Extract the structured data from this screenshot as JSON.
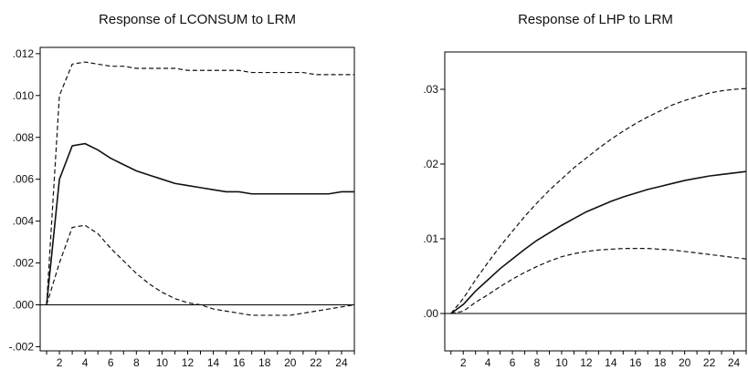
{
  "chart_data": [
    {
      "type": "line",
      "title": "Response of LCONSUM to LRM",
      "xlabel": "",
      "ylabel": "",
      "x": [
        1,
        2,
        3,
        4,
        5,
        6,
        7,
        8,
        9,
        10,
        11,
        12,
        13,
        14,
        15,
        16,
        17,
        18,
        19,
        20,
        21,
        22,
        23,
        24,
        25
      ],
      "xlim": [
        0.5,
        25
      ],
      "ylim": [
        -0.0022,
        0.0123
      ],
      "xticks": [
        2,
        4,
        6,
        8,
        10,
        12,
        14,
        16,
        18,
        20,
        22,
        24
      ],
      "xtick_labels": [
        "2",
        "4",
        "6",
        "8",
        "10",
        "12",
        "14",
        "16",
        "18",
        "20",
        "22",
        "24"
      ],
      "yticks": [
        -0.002,
        0.0,
        0.002,
        0.004,
        0.006,
        0.008,
        0.01,
        0.012
      ],
      "ytick_labels": [
        "-.002",
        ".000",
        ".002",
        ".004",
        ".006",
        ".008",
        ".010",
        ".012"
      ],
      "zero_line": true,
      "grid": false,
      "series": [
        {
          "style": "solid",
          "values": [
            0.0,
            0.006,
            0.0076,
            0.0077,
            0.0074,
            0.007,
            0.0067,
            0.0064,
            0.0062,
            0.006,
            0.0058,
            0.0057,
            0.0056,
            0.0055,
            0.0054,
            0.0054,
            0.0053,
            0.0053,
            0.0053,
            0.0053,
            0.0053,
            0.0053,
            0.0053,
            0.0054,
            0.0054
          ]
        },
        {
          "style": "dashed",
          "values": [
            0.0,
            0.01,
            0.0115,
            0.0116,
            0.0115,
            0.0114,
            0.0114,
            0.0113,
            0.0113,
            0.0113,
            0.0113,
            0.0112,
            0.0112,
            0.0112,
            0.0112,
            0.0112,
            0.0111,
            0.0111,
            0.0111,
            0.0111,
            0.0111,
            0.011,
            0.011,
            0.011,
            0.011
          ]
        },
        {
          "style": "dashed",
          "values": [
            0.0,
            0.002,
            0.0037,
            0.0038,
            0.0034,
            0.0027,
            0.0021,
            0.0015,
            0.001,
            0.0006,
            0.0003,
            0.0001,
            0.0,
            -0.0002,
            -0.0003,
            -0.0004,
            -0.0005,
            -0.0005,
            -0.0005,
            -0.0005,
            -0.0004,
            -0.0003,
            -0.0002,
            -0.0001,
            0.0
          ]
        }
      ]
    },
    {
      "type": "line",
      "title": "Response of LHP to LRM",
      "xlabel": "",
      "ylabel": "",
      "x": [
        1,
        2,
        3,
        4,
        5,
        6,
        7,
        8,
        9,
        10,
        11,
        12,
        13,
        14,
        15,
        16,
        17,
        18,
        19,
        20,
        21,
        22,
        23,
        24,
        25
      ],
      "xlim": [
        0.5,
        25
      ],
      "ylim": [
        -0.005,
        0.035
      ],
      "xticks": [
        2,
        4,
        6,
        8,
        10,
        12,
        14,
        16,
        18,
        20,
        22,
        24
      ],
      "xtick_labels": [
        "2",
        "4",
        "6",
        "8",
        "10",
        "12",
        "14",
        "16",
        "18",
        "20",
        "22",
        "24"
      ],
      "yticks": [
        0.0,
        0.01,
        0.02,
        0.03
      ],
      "ytick_labels": [
        ".00",
        ".01",
        ".02",
        ".03"
      ],
      "zero_line": true,
      "grid": false,
      "series": [
        {
          "style": "solid",
          "values": [
            0.0,
            0.0012,
            0.003,
            0.0045,
            0.006,
            0.0073,
            0.0086,
            0.0098,
            0.0108,
            0.0118,
            0.0127,
            0.0136,
            0.0143,
            0.015,
            0.0156,
            0.0161,
            0.0166,
            0.017,
            0.0174,
            0.0178,
            0.0181,
            0.0184,
            0.0186,
            0.0188,
            0.019
          ]
        },
        {
          "style": "dashed",
          "values": [
            0.0,
            0.002,
            0.0045,
            0.0068,
            0.009,
            0.011,
            0.013,
            0.0148,
            0.0165,
            0.018,
            0.0195,
            0.0208,
            0.0221,
            0.0233,
            0.0244,
            0.0254,
            0.0263,
            0.0271,
            0.0279,
            0.0285,
            0.029,
            0.0295,
            0.0298,
            0.03,
            0.0301
          ]
        },
        {
          "style": "dashed",
          "values": [
            0.0,
            0.0003,
            0.0015,
            0.0025,
            0.0036,
            0.0046,
            0.0055,
            0.0063,
            0.007,
            0.0076,
            0.008,
            0.0083,
            0.0085,
            0.0086,
            0.0087,
            0.0087,
            0.0087,
            0.0086,
            0.0085,
            0.0083,
            0.0081,
            0.0079,
            0.0077,
            0.0075,
            0.0073
          ]
        }
      ]
    }
  ]
}
